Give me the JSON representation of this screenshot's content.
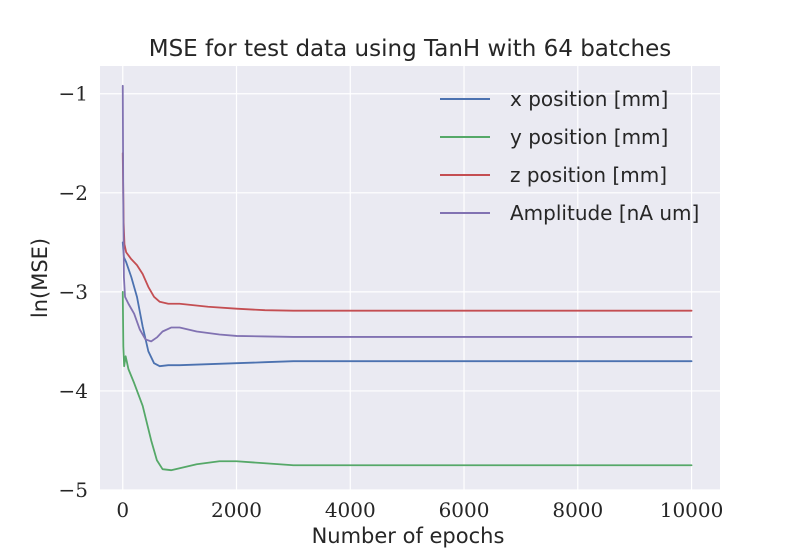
{
  "chart_data": {
    "type": "line",
    "title": "MSE for test data using TanH with 64 batches",
    "xlabel": "Number of epochs",
    "ylabel": "ln(MSE)",
    "xlim": [
      -400,
      10500
    ],
    "ylim": [
      -5.0,
      -0.72
    ],
    "xticks": [
      0,
      2000,
      4000,
      6000,
      8000,
      10000
    ],
    "xtick_labels": [
      "0",
      "2000",
      "4000",
      "6000",
      "8000",
      "10000"
    ],
    "yticks": [
      -5,
      -4,
      -3,
      -2,
      -1
    ],
    "ytick_labels": [
      "−5",
      "−4",
      "−3",
      "−2",
      "−1"
    ],
    "grid": true,
    "legend_position": "top-right",
    "series": [
      {
        "name": "x position [mm]",
        "color": "#4c72b0",
        "points": [
          [
            0,
            -2.5
          ],
          [
            20,
            -2.65
          ],
          [
            60,
            -2.7
          ],
          [
            150,
            -2.85
          ],
          [
            250,
            -3.05
          ],
          [
            350,
            -3.35
          ],
          [
            450,
            -3.6
          ],
          [
            550,
            -3.72
          ],
          [
            650,
            -3.75
          ],
          [
            800,
            -3.74
          ],
          [
            1000,
            -3.74
          ],
          [
            1500,
            -3.73
          ],
          [
            2000,
            -3.72
          ],
          [
            2500,
            -3.71
          ],
          [
            3000,
            -3.7
          ],
          [
            4000,
            -3.7
          ],
          [
            6000,
            -3.7
          ],
          [
            8000,
            -3.7
          ],
          [
            10000,
            -3.7
          ]
        ]
      },
      {
        "name": "y position [mm]",
        "color": "#55a868",
        "points": [
          [
            0,
            -3.0
          ],
          [
            10,
            -3.55
          ],
          [
            25,
            -3.75
          ],
          [
            50,
            -3.65
          ],
          [
            70,
            -3.7
          ],
          [
            100,
            -3.78
          ],
          [
            200,
            -3.92
          ],
          [
            350,
            -4.15
          ],
          [
            500,
            -4.5
          ],
          [
            600,
            -4.7
          ],
          [
            700,
            -4.79
          ],
          [
            850,
            -4.8
          ],
          [
            1000,
            -4.78
          ],
          [
            1300,
            -4.74
          ],
          [
            1700,
            -4.71
          ],
          [
            2000,
            -4.71
          ],
          [
            2500,
            -4.73
          ],
          [
            3000,
            -4.75
          ],
          [
            4000,
            -4.75
          ],
          [
            6000,
            -4.75
          ],
          [
            8000,
            -4.75
          ],
          [
            10000,
            -4.75
          ]
        ]
      },
      {
        "name": "z position [mm]",
        "color": "#c44e52",
        "points": [
          [
            0,
            -1.6
          ],
          [
            15,
            -2.3
          ],
          [
            30,
            -2.52
          ],
          [
            60,
            -2.6
          ],
          [
            150,
            -2.67
          ],
          [
            250,
            -2.73
          ],
          [
            350,
            -2.82
          ],
          [
            450,
            -2.95
          ],
          [
            550,
            -3.05
          ],
          [
            650,
            -3.1
          ],
          [
            800,
            -3.12
          ],
          [
            1000,
            -3.12
          ],
          [
            1500,
            -3.15
          ],
          [
            2000,
            -3.17
          ],
          [
            2500,
            -3.185
          ],
          [
            3000,
            -3.19
          ],
          [
            4000,
            -3.19
          ],
          [
            6000,
            -3.19
          ],
          [
            8000,
            -3.19
          ],
          [
            10000,
            -3.19
          ]
        ]
      },
      {
        "name": "Amplitude [nA um]",
        "color": "#8172b2",
        "points": [
          [
            0,
            -0.92
          ],
          [
            10,
            -2.2
          ],
          [
            20,
            -2.85
          ],
          [
            40,
            -3.05
          ],
          [
            100,
            -3.12
          ],
          [
            200,
            -3.22
          ],
          [
            300,
            -3.38
          ],
          [
            400,
            -3.48
          ],
          [
            500,
            -3.5
          ],
          [
            600,
            -3.46
          ],
          [
            700,
            -3.4
          ],
          [
            850,
            -3.36
          ],
          [
            1000,
            -3.36
          ],
          [
            1300,
            -3.4
          ],
          [
            1700,
            -3.43
          ],
          [
            2000,
            -3.445
          ],
          [
            2500,
            -3.45
          ],
          [
            3000,
            -3.455
          ],
          [
            4000,
            -3.455
          ],
          [
            6000,
            -3.455
          ],
          [
            8000,
            -3.455
          ],
          [
            10000,
            -3.455
          ]
        ]
      }
    ]
  }
}
